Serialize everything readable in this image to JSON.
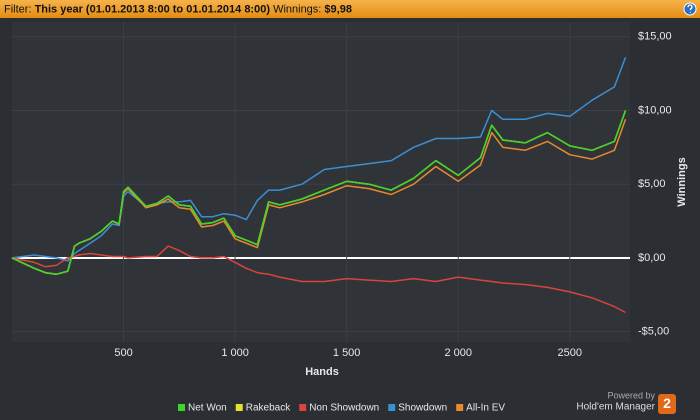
{
  "header": {
    "filter_label": "Filter:",
    "filter_value": "This year (01.01.2013 8:00 to 01.01.2014 8:00)",
    "winnings_label": "Winnings:",
    "winnings_value": "$9,98"
  },
  "footer": {
    "powered_by": "Powered by",
    "product": "Hold'em Manager",
    "logo_badge": "2"
  },
  "chart_data": {
    "type": "line",
    "x_label": "Hands",
    "y_label": "Winnings",
    "x": [
      0,
      100,
      150,
      200,
      250,
      280,
      300,
      350,
      400,
      450,
      480,
      500,
      520,
      600,
      650,
      700,
      750,
      800,
      850,
      900,
      950,
      1000,
      1050,
      1100,
      1150,
      1200,
      1300,
      1400,
      1500,
      1600,
      1700,
      1800,
      1900,
      2000,
      2100,
      2150,
      2200,
      2300,
      2400,
      2500,
      2600,
      2700,
      2750
    ],
    "series": [
      {
        "name": "Net Won",
        "color": "#3fd42a",
        "values": [
          0,
          -0.7,
          -1.0,
          -1.1,
          -0.9,
          0.8,
          1.0,
          1.3,
          1.8,
          2.5,
          2.3,
          4.5,
          4.8,
          3.5,
          3.7,
          4.2,
          3.6,
          3.5,
          2.3,
          2.4,
          2.7,
          1.5,
          1.2,
          0.9,
          3.8,
          3.6,
          4.0,
          4.6,
          5.2,
          5.0,
          4.6,
          5.4,
          6.6,
          5.6,
          6.8,
          9.0,
          8.0,
          7.8,
          8.5,
          7.6,
          7.3,
          7.9,
          10.0
        ]
      },
      {
        "name": "Rakeback",
        "color": "#e8e030",
        "values": [
          0,
          -0.7,
          -1.0,
          -1.1,
          -0.9,
          0.8,
          1.0,
          1.3,
          1.8,
          2.5,
          2.3,
          4.5,
          4.8,
          3.5,
          3.7,
          4.2,
          3.6,
          3.5,
          2.3,
          2.4,
          2.7,
          1.5,
          1.2,
          0.9,
          3.8,
          3.6,
          4.0,
          4.6,
          5.2,
          5.0,
          4.6,
          5.4,
          6.6,
          5.6,
          6.8,
          9.0,
          8.0,
          7.8,
          8.5,
          7.6,
          7.3,
          7.9,
          10.0
        ]
      },
      {
        "name": "Non Showdown",
        "color": "#d9443c",
        "values": [
          0,
          -0.3,
          -0.6,
          -0.5,
          0,
          0.1,
          0.2,
          0.3,
          0.2,
          0.1,
          0.1,
          0.1,
          0,
          0.1,
          0.1,
          0.8,
          0.5,
          0.1,
          0,
          0,
          0.1,
          -0.3,
          -0.7,
          -1.0,
          -1.1,
          -1.3,
          -1.6,
          -1.6,
          -1.4,
          -1.5,
          -1.6,
          -1.4,
          -1.6,
          -1.3,
          -1.5,
          -1.6,
          -1.7,
          -1.8,
          -2.0,
          -2.3,
          -2.7,
          -3.3,
          -3.7
        ]
      },
      {
        "name": "Showdown",
        "color": "#3d8fd4",
        "values": [
          0,
          0.2,
          0.1,
          0,
          -0.2,
          0.3,
          0.5,
          1.0,
          1.5,
          2.3,
          2.2,
          4.2,
          4.5,
          3.5,
          3.7,
          3.8,
          3.8,
          3.9,
          2.8,
          2.8,
          3.0,
          2.9,
          2.6,
          3.9,
          4.6,
          4.6,
          5.0,
          6.0,
          6.2,
          6.4,
          6.6,
          7.5,
          8.1,
          8.1,
          8.2,
          10.0,
          9.4,
          9.4,
          9.8,
          9.6,
          10.7,
          11.6,
          13.6
        ]
      },
      {
        "name": "All-In EV",
        "color": "#e88a2c",
        "values": [
          0,
          -0.7,
          -1.0,
          -1.1,
          -0.9,
          0.8,
          1.0,
          1.3,
          1.8,
          2.5,
          2.3,
          4.4,
          4.7,
          3.4,
          3.6,
          4.0,
          3.4,
          3.3,
          2.1,
          2.2,
          2.5,
          1.3,
          1.0,
          0.7,
          3.6,
          3.4,
          3.8,
          4.3,
          4.9,
          4.7,
          4.3,
          5.0,
          6.2,
          5.2,
          6.3,
          8.5,
          7.5,
          7.3,
          7.9,
          7.0,
          6.7,
          7.3,
          9.4
        ]
      }
    ],
    "xlim": [
      0,
      2770
    ],
    "ylim": [
      -5.7,
      16
    ],
    "xticks": [
      500,
      {
        "value": 1000,
        "label": "1 000"
      },
      {
        "value": 1500,
        "label": "1 500"
      },
      {
        "value": 2000,
        "label": "2 000"
      },
      2500
    ],
    "yticks": [
      {
        "value": -5,
        "label": "-$5,00"
      },
      {
        "value": 0,
        "label": "$0,00"
      },
      {
        "value": 5,
        "label": "$5,00"
      },
      {
        "value": 10,
        "label": "$10,00"
      },
      {
        "value": 15,
        "label": "$15,00"
      }
    ],
    "grid": true,
    "legend": "bottom"
  }
}
